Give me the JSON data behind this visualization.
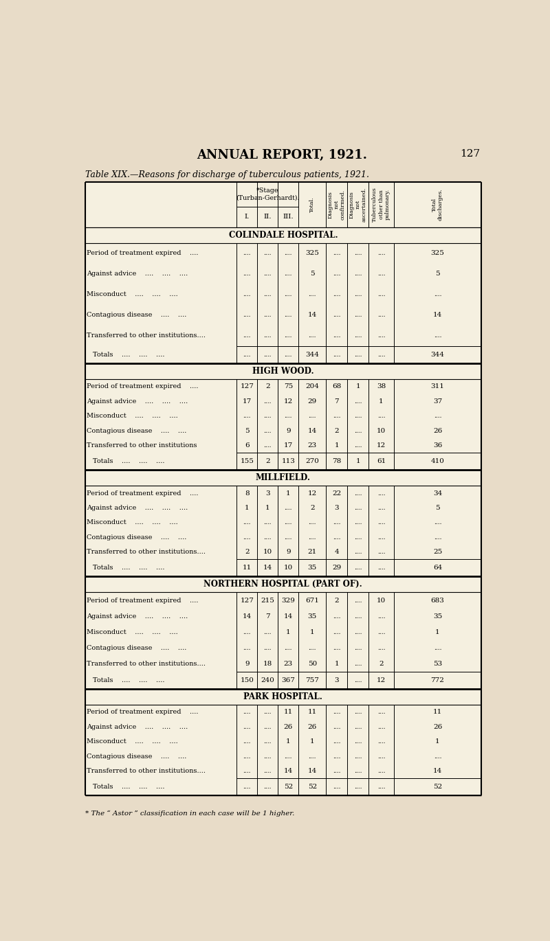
{
  "page_title": "ANNUAL REPORT, 1921.",
  "page_number": "127",
  "table_title": "Table XIX.—Reasons for discharge of tuberculous patients, 1921.",
  "bg_color": "#e8dcc8",
  "table_bg": "#f5f0e0",
  "sections": [
    {
      "name": "COLINDALE HOSPITAL.",
      "rows": [
        {
          "label": "Period of treatment expired    ....",
          "I": "....",
          "II": "....",
          "III": "....",
          "Total": "325",
          "DNC": "....",
          "DNA": "....",
          "Tub": "....",
          "TotD": "325"
        },
        {
          "label": "Against advice    ....    ....    ....",
          "I": "....",
          "II": "....",
          "III": "....",
          "Total": "5",
          "DNC": "....",
          "DNA": "....",
          "Tub": "....",
          "TotD": "5"
        },
        {
          "label": "Misconduct    ....    ....    ....",
          "I": "....",
          "II": "....",
          "III": "....",
          "Total": "....",
          "DNC": "....",
          "DNA": "....",
          "Tub": "....",
          "TotD": "...."
        },
        {
          "label": "Contagious disease    ....    ....",
          "I": "....",
          "II": "....",
          "III": "....",
          "Total": "14",
          "DNC": "....",
          "DNA": "....",
          "Tub": "....",
          "TotD": "14"
        },
        {
          "label": "Transferred to other institutions....",
          "I": "....",
          "II": "....",
          "III": "....",
          "Total": "....",
          "DNC": "....",
          "DNA": "....",
          "Tub": "....",
          "TotD": "...."
        }
      ],
      "totals": {
        "label": "Totals    ....    ....    ....",
        "I": "....",
        "II": "....",
        "III": "....",
        "Total": "344",
        "DNC": "....",
        "DNA": "....",
        "Tub": "....",
        "TotD": "344"
      }
    },
    {
      "name": "HIGH WOOD.",
      "rows": [
        {
          "label": "Period of treatment expired    ....",
          "I": "127",
          "II": "2",
          "III": "75",
          "Total": "204",
          "DNC": "68",
          "DNA": "1",
          "Tub": "38",
          "TotD": "311"
        },
        {
          "label": "Against advice    ....    ....    ....",
          "I": "17",
          "II": "....",
          "III": "12",
          "Total": "29",
          "DNC": "7",
          "DNA": "....",
          "Tub": "1",
          "TotD": "37"
        },
        {
          "label": "Misconduct    ....    ....    ....",
          "I": "....",
          "II": "....",
          "III": "....",
          "Total": "....",
          "DNC": "....",
          "DNA": "....",
          "Tub": "....",
          "TotD": "...."
        },
        {
          "label": "Contagious disease    ....    ....",
          "I": "5",
          "II": "....",
          "III": "9",
          "Total": "14",
          "DNC": "2",
          "DNA": "....",
          "Tub": "10",
          "TotD": "26"
        },
        {
          "label": "Transferred to other institutions",
          "I": "6",
          "II": "....",
          "III": "17",
          "Total": "23",
          "DNC": "1",
          "DNA": "....",
          "Tub": "12",
          "TotD": "36"
        }
      ],
      "totals": {
        "label": "Totals    ....    ....    ....",
        "I": "155",
        "II": "2",
        "III": "113",
        "Total": "270",
        "DNC": "78",
        "DNA": "1",
        "Tub": "61",
        "TotD": "410"
      }
    },
    {
      "name": "MILLFIELD.",
      "rows": [
        {
          "label": "Period of treatment expired    ....",
          "I": "8",
          "II": "3",
          "III": "1",
          "Total": "12",
          "DNC": "22",
          "DNA": "....",
          "Tub": "....",
          "TotD": "34"
        },
        {
          "label": "Against advice    ....    ....    ....",
          "I": "1",
          "II": "1",
          "III": "....",
          "Total": "2",
          "DNC": "3",
          "DNA": "....",
          "Tub": "....",
          "TotD": "5"
        },
        {
          "label": "Misconduct    ....    ....    ....",
          "I": "....",
          "II": "....",
          "III": "....",
          "Total": "....",
          "DNC": "....",
          "DNA": "....",
          "Tub": "....",
          "TotD": "...."
        },
        {
          "label": "Contagious disease    ....    ....",
          "I": "....",
          "II": "....",
          "III": "....",
          "Total": "....",
          "DNC": "....",
          "DNA": "....",
          "Tub": "....",
          "TotD": "...."
        },
        {
          "label": "Transferred to other institutions....",
          "I": "2",
          "II": "10",
          "III": "9",
          "Total": "21",
          "DNC": "4",
          "DNA": "....",
          "Tub": "....",
          "TotD": "25"
        }
      ],
      "totals": {
        "label": "Totals    ....    ....    ....",
        "I": "11",
        "II": "14",
        "III": "10",
        "Total": "35",
        "DNC": "29",
        "DNA": "....",
        "Tub": "....",
        "TotD": "64"
      }
    },
    {
      "name": "NORTHERN HOSPITAL (PART OF).",
      "rows": [
        {
          "label": "Period of treatment expired    ....",
          "I": "127",
          "II": "215",
          "III": "329",
          "Total": "671",
          "DNC": "2",
          "DNA": "....",
          "Tub": "10",
          "TotD": "683"
        },
        {
          "label": "Against advice    ....    ....    ....",
          "I": "14",
          "II": "7",
          "III": "14",
          "Total": "35",
          "DNC": "....",
          "DNA": "....",
          "Tub": "....",
          "TotD": "35"
        },
        {
          "label": "Misconduct    ....    ....    ....",
          "I": "....",
          "II": "....",
          "III": "1",
          "Total": "1",
          "DNC": "....",
          "DNA": "....",
          "Tub": "....",
          "TotD": "1"
        },
        {
          "label": "Contagious disease    ....    ....",
          "I": "....",
          "II": "....",
          "III": "....",
          "Total": "....",
          "DNC": "....",
          "DNA": "....",
          "Tub": "....",
          "TotD": "...."
        },
        {
          "label": "Transferred to other institutions....",
          "I": "9",
          "II": "18",
          "III": "23",
          "Total": "50",
          "DNC": "1",
          "DNA": "....",
          "Tub": "2",
          "TotD": "53"
        }
      ],
      "totals": {
        "label": "Totals    ....    ....    ....",
        "I": "150",
        "II": "240",
        "III": "367",
        "Total": "757",
        "DNC": "3",
        "DNA": "....",
        "Tub": "12",
        "TotD": "772"
      }
    },
    {
      "name": "PARK HOSPITAL.",
      "rows": [
        {
          "label": "Period of treatment expired    ....",
          "I": "....",
          "II": "....",
          "III": "11",
          "Total": "11",
          "DNC": "....",
          "DNA": "....",
          "Tub": "....",
          "TotD": "11"
        },
        {
          "label": "Against advice    ....    ....    ....",
          "I": "....",
          "II": "....",
          "III": "26",
          "Total": "26",
          "DNC": "....",
          "DNA": "....",
          "Tub": "....",
          "TotD": "26"
        },
        {
          "label": "Misconduct    ....    ....    ....",
          "I": "....",
          "II": "....",
          "III": "1",
          "Total": "1",
          "DNC": "....",
          "DNA": "....",
          "Tub": "....",
          "TotD": "1"
        },
        {
          "label": "Contagious disease    ....    ....",
          "I": "....",
          "II": "....",
          "III": "....",
          "Total": "....",
          "DNC": "....",
          "DNA": "....",
          "Tub": "....",
          "TotD": "...."
        },
        {
          "label": "Transferred to other institutions....",
          "I": "....",
          "II": "....",
          "III": "14",
          "Total": "14",
          "DNC": "....",
          "DNA": "....",
          "Tub": "....",
          "TotD": "14"
        }
      ],
      "totals": {
        "label": "Totals    ....    ....    ....",
        "I": "....",
        "II": "....",
        "III": "52",
        "Total": "52",
        "DNC": "....",
        "DNA": "....",
        "Tub": "....",
        "TotD": "52"
      }
    }
  ],
  "footnote": "* The “ Astor ” classification in each case will be 1 higher."
}
